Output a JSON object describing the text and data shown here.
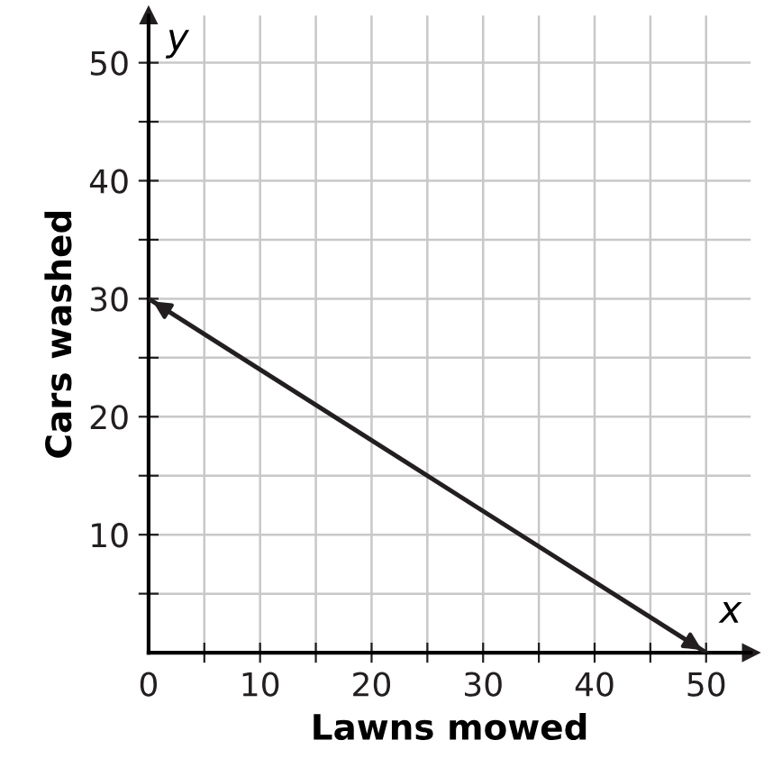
{
  "chart_data": {
    "type": "line",
    "xlabel": "Lawns mowed",
    "ylabel": "Cars washed",
    "x": [
      0,
      50
    ],
    "series": [
      {
        "color": "#231f20",
        "values": [
          30,
          0
        ]
      }
    ],
    "xlim": [
      0,
      54
    ],
    "ylim": [
      0,
      54
    ],
    "xticks": [
      {
        "value": 0,
        "label": "0"
      },
      {
        "value": 5,
        "label": null
      },
      10,
      {
        "value": 15,
        "label": null
      },
      20,
      {
        "value": 25,
        "label": null
      },
      30,
      {
        "value": 35,
        "label": null
      },
      40,
      {
        "value": 45,
        "label": null
      },
      50
    ],
    "yticks": [
      {
        "value": 5,
        "label": null
      },
      10,
      {
        "value": 15,
        "label": null
      },
      20,
      {
        "value": 25,
        "label": null
      },
      30,
      {
        "value": 35,
        "label": null
      },
      40,
      {
        "value": 45,
        "label": null
      },
      50
    ],
    "grid": true,
    "marker": "none",
    "line_style": "solid",
    "annotations": [
      "x",
      "y"
    ]
  }
}
